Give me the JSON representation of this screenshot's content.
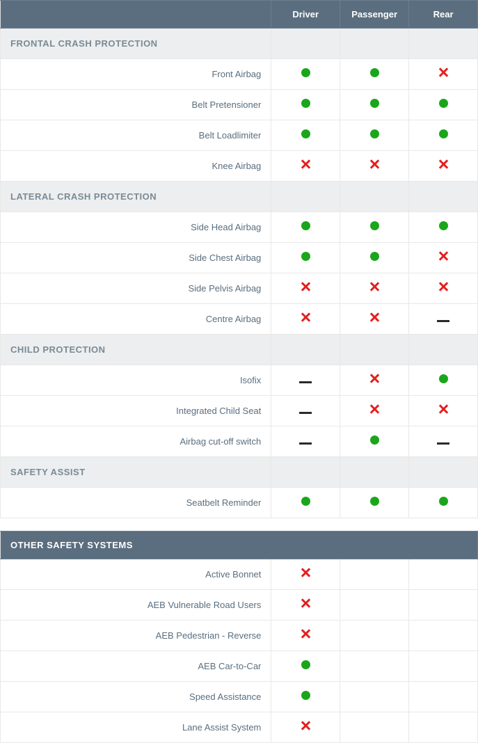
{
  "colors": {
    "header_bg": "#5a6e7f",
    "header_text": "#ffffff",
    "section_bg": "#eceeef",
    "section_text": "#7a8a95",
    "label_text": "#5a6e7f",
    "border": "#e8e8e8",
    "yes": "#1aa61a",
    "no": "#e42020",
    "na": "#2a2a2a"
  },
  "columns": [
    "Driver",
    "Passenger",
    "Rear"
  ],
  "sections": [
    {
      "title": "FRONTAL CRASH PROTECTION",
      "rows": [
        {
          "label": "Front Airbag",
          "vals": [
            "yes",
            "yes",
            "no"
          ]
        },
        {
          "label": "Belt Pretensioner",
          "vals": [
            "yes",
            "yes",
            "yes"
          ]
        },
        {
          "label": "Belt Loadlimiter",
          "vals": [
            "yes",
            "yes",
            "yes"
          ]
        },
        {
          "label": "Knee Airbag",
          "vals": [
            "no",
            "no",
            "no"
          ]
        }
      ]
    },
    {
      "title": "LATERAL CRASH PROTECTION",
      "rows": [
        {
          "label": "Side Head Airbag",
          "vals": [
            "yes",
            "yes",
            "yes"
          ]
        },
        {
          "label": "Side Chest Airbag",
          "vals": [
            "yes",
            "yes",
            "no"
          ]
        },
        {
          "label": "Side Pelvis Airbag",
          "vals": [
            "no",
            "no",
            "no"
          ]
        },
        {
          "label": "Centre Airbag",
          "vals": [
            "no",
            "no",
            "na"
          ]
        }
      ]
    },
    {
      "title": "CHILD PROTECTION",
      "rows": [
        {
          "label": "Isofix",
          "vals": [
            "na",
            "no",
            "yes"
          ]
        },
        {
          "label": "Integrated Child Seat",
          "vals": [
            "na",
            "no",
            "no"
          ]
        },
        {
          "label": "Airbag cut-off switch",
          "vals": [
            "na",
            "yes",
            "na"
          ]
        }
      ]
    },
    {
      "title": "SAFETY ASSIST",
      "rows": [
        {
          "label": "Seatbelt Reminder",
          "vals": [
            "yes",
            "yes",
            "yes"
          ]
        }
      ]
    }
  ],
  "other": {
    "title": "OTHER SAFETY SYSTEMS",
    "rows": [
      {
        "label": "Active Bonnet",
        "vals": [
          "no",
          "",
          ""
        ]
      },
      {
        "label": "AEB Vulnerable Road Users",
        "vals": [
          "no",
          "",
          ""
        ]
      },
      {
        "label": "AEB Pedestrian - Reverse",
        "vals": [
          "no",
          "",
          ""
        ]
      },
      {
        "label": "AEB Car-to-Car",
        "vals": [
          "yes",
          "",
          ""
        ]
      },
      {
        "label": "Speed Assistance",
        "vals": [
          "yes",
          "",
          ""
        ]
      },
      {
        "label": "Lane Assist System",
        "vals": [
          "no",
          "",
          ""
        ]
      }
    ]
  }
}
